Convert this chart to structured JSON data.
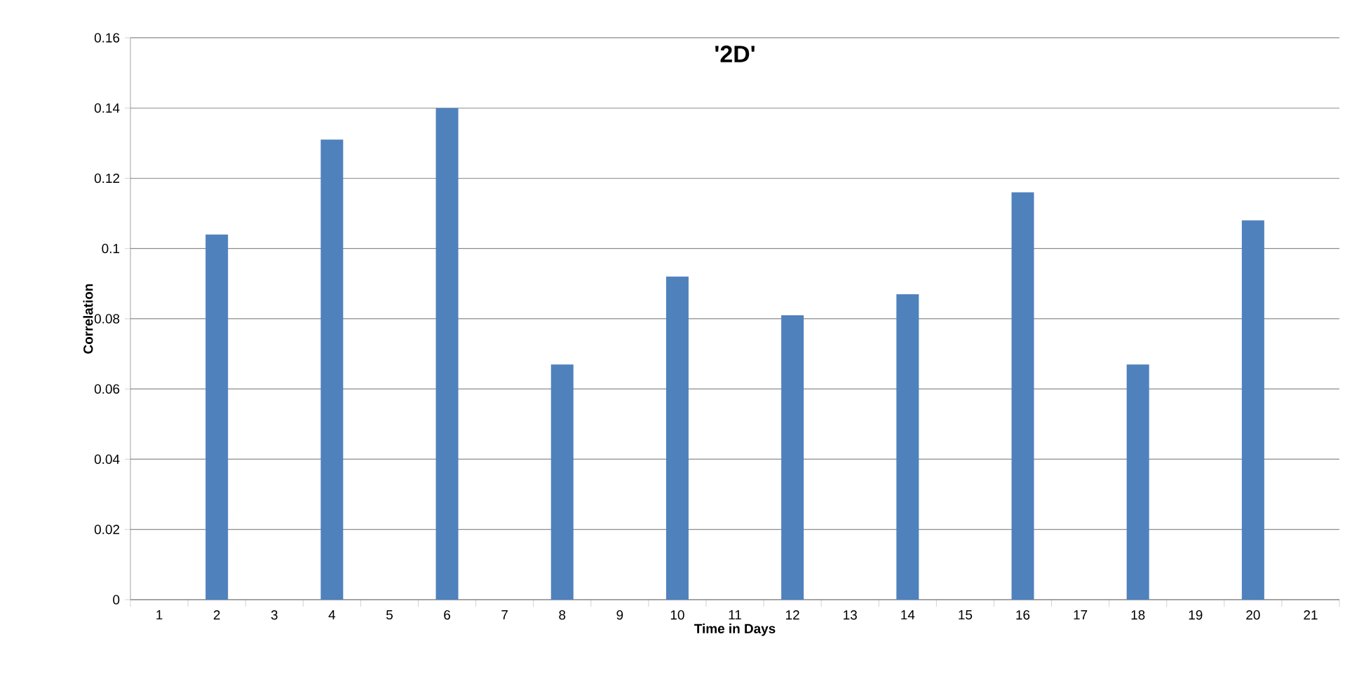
{
  "chart_data": {
    "type": "bar",
    "title": "'2D'",
    "xlabel": "Time in Days",
    "ylabel": "Correlation",
    "categories": [
      "1",
      "2",
      "3",
      "4",
      "5",
      "6",
      "7",
      "8",
      "9",
      "10",
      "11",
      "12",
      "13",
      "14",
      "15",
      "16",
      "17",
      "18",
      "19",
      "20",
      "21"
    ],
    "values": [
      null,
      0.104,
      null,
      0.131,
      null,
      0.14,
      null,
      0.067,
      null,
      0.092,
      null,
      0.081,
      null,
      0.087,
      null,
      0.116,
      null,
      0.067,
      null,
      0.108,
      null
    ],
    "color": "#4f81bd",
    "ylim": [
      0,
      0.16
    ],
    "yticks": [
      0,
      0.02,
      0.04,
      0.06,
      0.08,
      0.1,
      0.12,
      0.14,
      0.16
    ],
    "grid": "y"
  }
}
